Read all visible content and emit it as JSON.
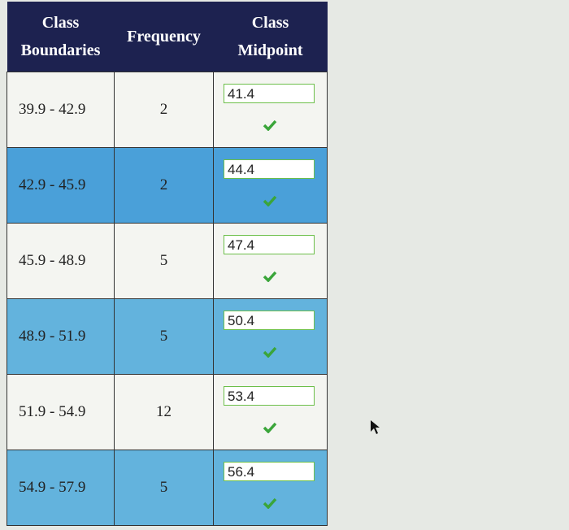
{
  "table": {
    "header": [
      "Class Boundaries",
      "Frequency",
      "Class Midpoint"
    ],
    "rows": [
      [
        "39.9 - 42.9",
        2,
        41.4
      ],
      [
        "42.9 - 45.9",
        2,
        44.4
      ],
      [
        "45.9 - 48.9",
        5,
        47.4
      ],
      [
        "48.9 - 51.9",
        5,
        50.4
      ],
      [
        "51.9 - 54.9",
        12,
        53.4
      ],
      [
        "54.9 - 57.9",
        5,
        56.4
      ]
    ]
  }
}
